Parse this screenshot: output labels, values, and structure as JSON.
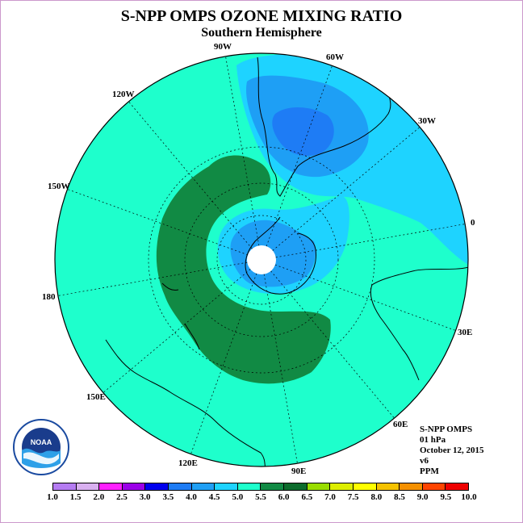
{
  "title": "S-NPP OMPS OZONE MIXING RATIO",
  "subtitle": "Southern Hemisphere",
  "longitude_labels": [
    "90W",
    "60W",
    "30W",
    "0",
    "30E",
    "60E",
    "90E",
    "120E",
    "150E",
    "180",
    "150W",
    "120W"
  ],
  "info": {
    "instrument": "S-NPP OMPS",
    "level": "01 hPa",
    "date": "October 12, 2015",
    "version": "v6",
    "units": "PPM"
  },
  "logo": {
    "text": "NOAA"
  },
  "colorbar": {
    "ticks": [
      "1.0",
      "1.5",
      "2.0",
      "2.5",
      "3.0",
      "3.5",
      "4.0",
      "4.5",
      "5.0",
      "5.5",
      "6.0",
      "6.5",
      "7.0",
      "7.5",
      "8.0",
      "8.5",
      "9.0",
      "9.5",
      "10.0"
    ],
    "colors": [
      "#b57cf2",
      "#d9b0f0",
      "#ff20ff",
      "#9b00e8",
      "#0000ee",
      "#1e7cf5",
      "#1f9ff5",
      "#1ed3ff",
      "#1effcc",
      "#118a44",
      "#0c6c2c",
      "#99dd00",
      "#ddee00",
      "#ffff00",
      "#f5c200",
      "#f59000",
      "#ff4400",
      "#ee0000",
      "#8c5c3c"
    ]
  }
}
